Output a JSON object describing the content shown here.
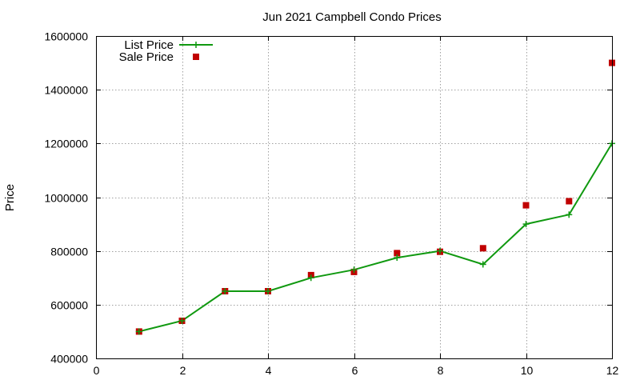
{
  "chart_data": {
    "type": "line",
    "title": "Jun 2021 Campbell Condo Prices",
    "xlabel": "",
    "ylabel": "Price",
    "xlim": [
      0,
      12
    ],
    "ylim": [
      400000,
      1600000
    ],
    "x_ticks": [
      "0",
      "2",
      "4",
      "6",
      "8",
      "10",
      "12"
    ],
    "y_ticks": [
      "400000",
      "600000",
      "800000",
      "1000000",
      "1200000",
      "1400000",
      "1600000"
    ],
    "grid": true,
    "legend_placement": "top-left",
    "series": [
      {
        "name": "List Price",
        "style": "line-with-plus-markers",
        "color": "#109910",
        "x": [
          1,
          2,
          3,
          4,
          5,
          6,
          7,
          8,
          9,
          10,
          11,
          12
        ],
        "values": [
          500000,
          540000,
          650000,
          650000,
          700000,
          730000,
          775000,
          800000,
          750000,
          900000,
          935000,
          1200000
        ]
      },
      {
        "name": "Sale Price",
        "style": "square-markers",
        "color": "#c00000",
        "x": [
          1,
          2,
          3,
          4,
          5,
          6,
          7,
          8,
          9,
          10,
          11,
          12
        ],
        "values": [
          500000,
          540000,
          650000,
          650000,
          710000,
          722000,
          792000,
          797000,
          810000,
          970000,
          985000,
          1500000
        ]
      }
    ]
  }
}
